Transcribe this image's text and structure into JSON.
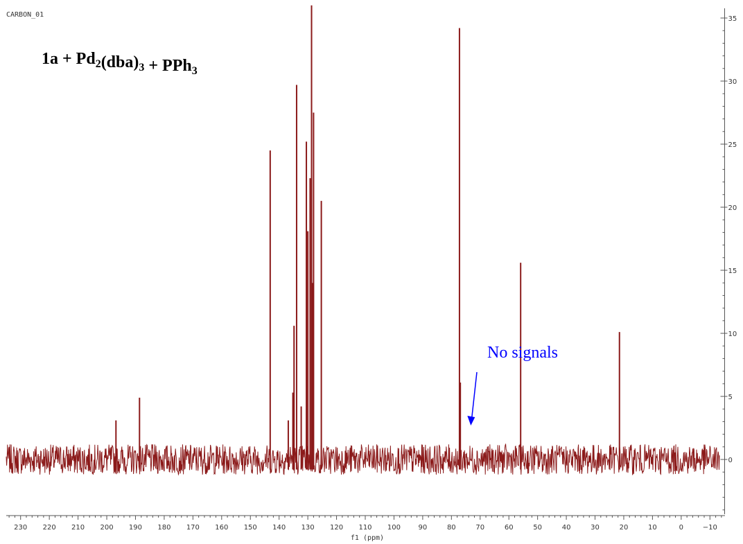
{
  "spectrum_name": "CARBON_01",
  "title": {
    "parts": [
      {
        "text": "1a + Pd",
        "sub": false
      },
      {
        "text": "2",
        "sub": true
      },
      {
        "text": "(dba)",
        "sub": false
      },
      {
        "text": "3",
        "sub": true
      },
      {
        "text": " + PPh",
        "sub": false
      },
      {
        "text": "3",
        "sub": true
      }
    ]
  },
  "annotation": {
    "text": "No signals",
    "color": "#0000ff",
    "points_to_ppm": 73
  },
  "colors": {
    "spectrum": "#8b1a1a",
    "axis": "#555555",
    "annotation": "#0000ff"
  },
  "chart_data": {
    "type": "line",
    "xlabel": "f1 (ppm)",
    "ylabel": "",
    "x_reversed": true,
    "xlim": [
      235,
      -15
    ],
    "ylim": [
      -4.5,
      35.5
    ],
    "x_ticks": [
      230,
      220,
      210,
      200,
      190,
      180,
      170,
      160,
      150,
      140,
      130,
      120,
      110,
      100,
      90,
      80,
      70,
      60,
      50,
      40,
      30,
      20,
      10,
      0,
      -10
    ],
    "y_ticks": [
      0,
      5,
      10,
      15,
      20,
      25,
      30,
      35
    ],
    "noise_level": 1.2,
    "peaks": [
      {
        "ppm": 196.8,
        "intensity": 3.1
      },
      {
        "ppm": 188.6,
        "intensity": 4.9
      },
      {
        "ppm": 143.1,
        "intensity": 24.5
      },
      {
        "ppm": 136.8,
        "intensity": 3.1
      },
      {
        "ppm": 135.2,
        "intensity": 5.3
      },
      {
        "ppm": 134.8,
        "intensity": 10.6
      },
      {
        "ppm": 133.9,
        "intensity": 29.7
      },
      {
        "ppm": 132.3,
        "intensity": 4.2
      },
      {
        "ppm": 130.5,
        "intensity": 25.2
      },
      {
        "ppm": 130.0,
        "intensity": 18.1
      },
      {
        "ppm": 129.2,
        "intensity": 22.3
      },
      {
        "ppm": 128.7,
        "intensity": 36.0
      },
      {
        "ppm": 128.4,
        "intensity": 14.0
      },
      {
        "ppm": 128.0,
        "intensity": 27.5
      },
      {
        "ppm": 125.3,
        "intensity": 20.5
      },
      {
        "ppm": 77.2,
        "intensity": 34.2
      },
      {
        "ppm": 76.9,
        "intensity": 6.1
      },
      {
        "ppm": 55.9,
        "intensity": 15.6
      },
      {
        "ppm": 21.5,
        "intensity": 10.1
      }
    ]
  }
}
